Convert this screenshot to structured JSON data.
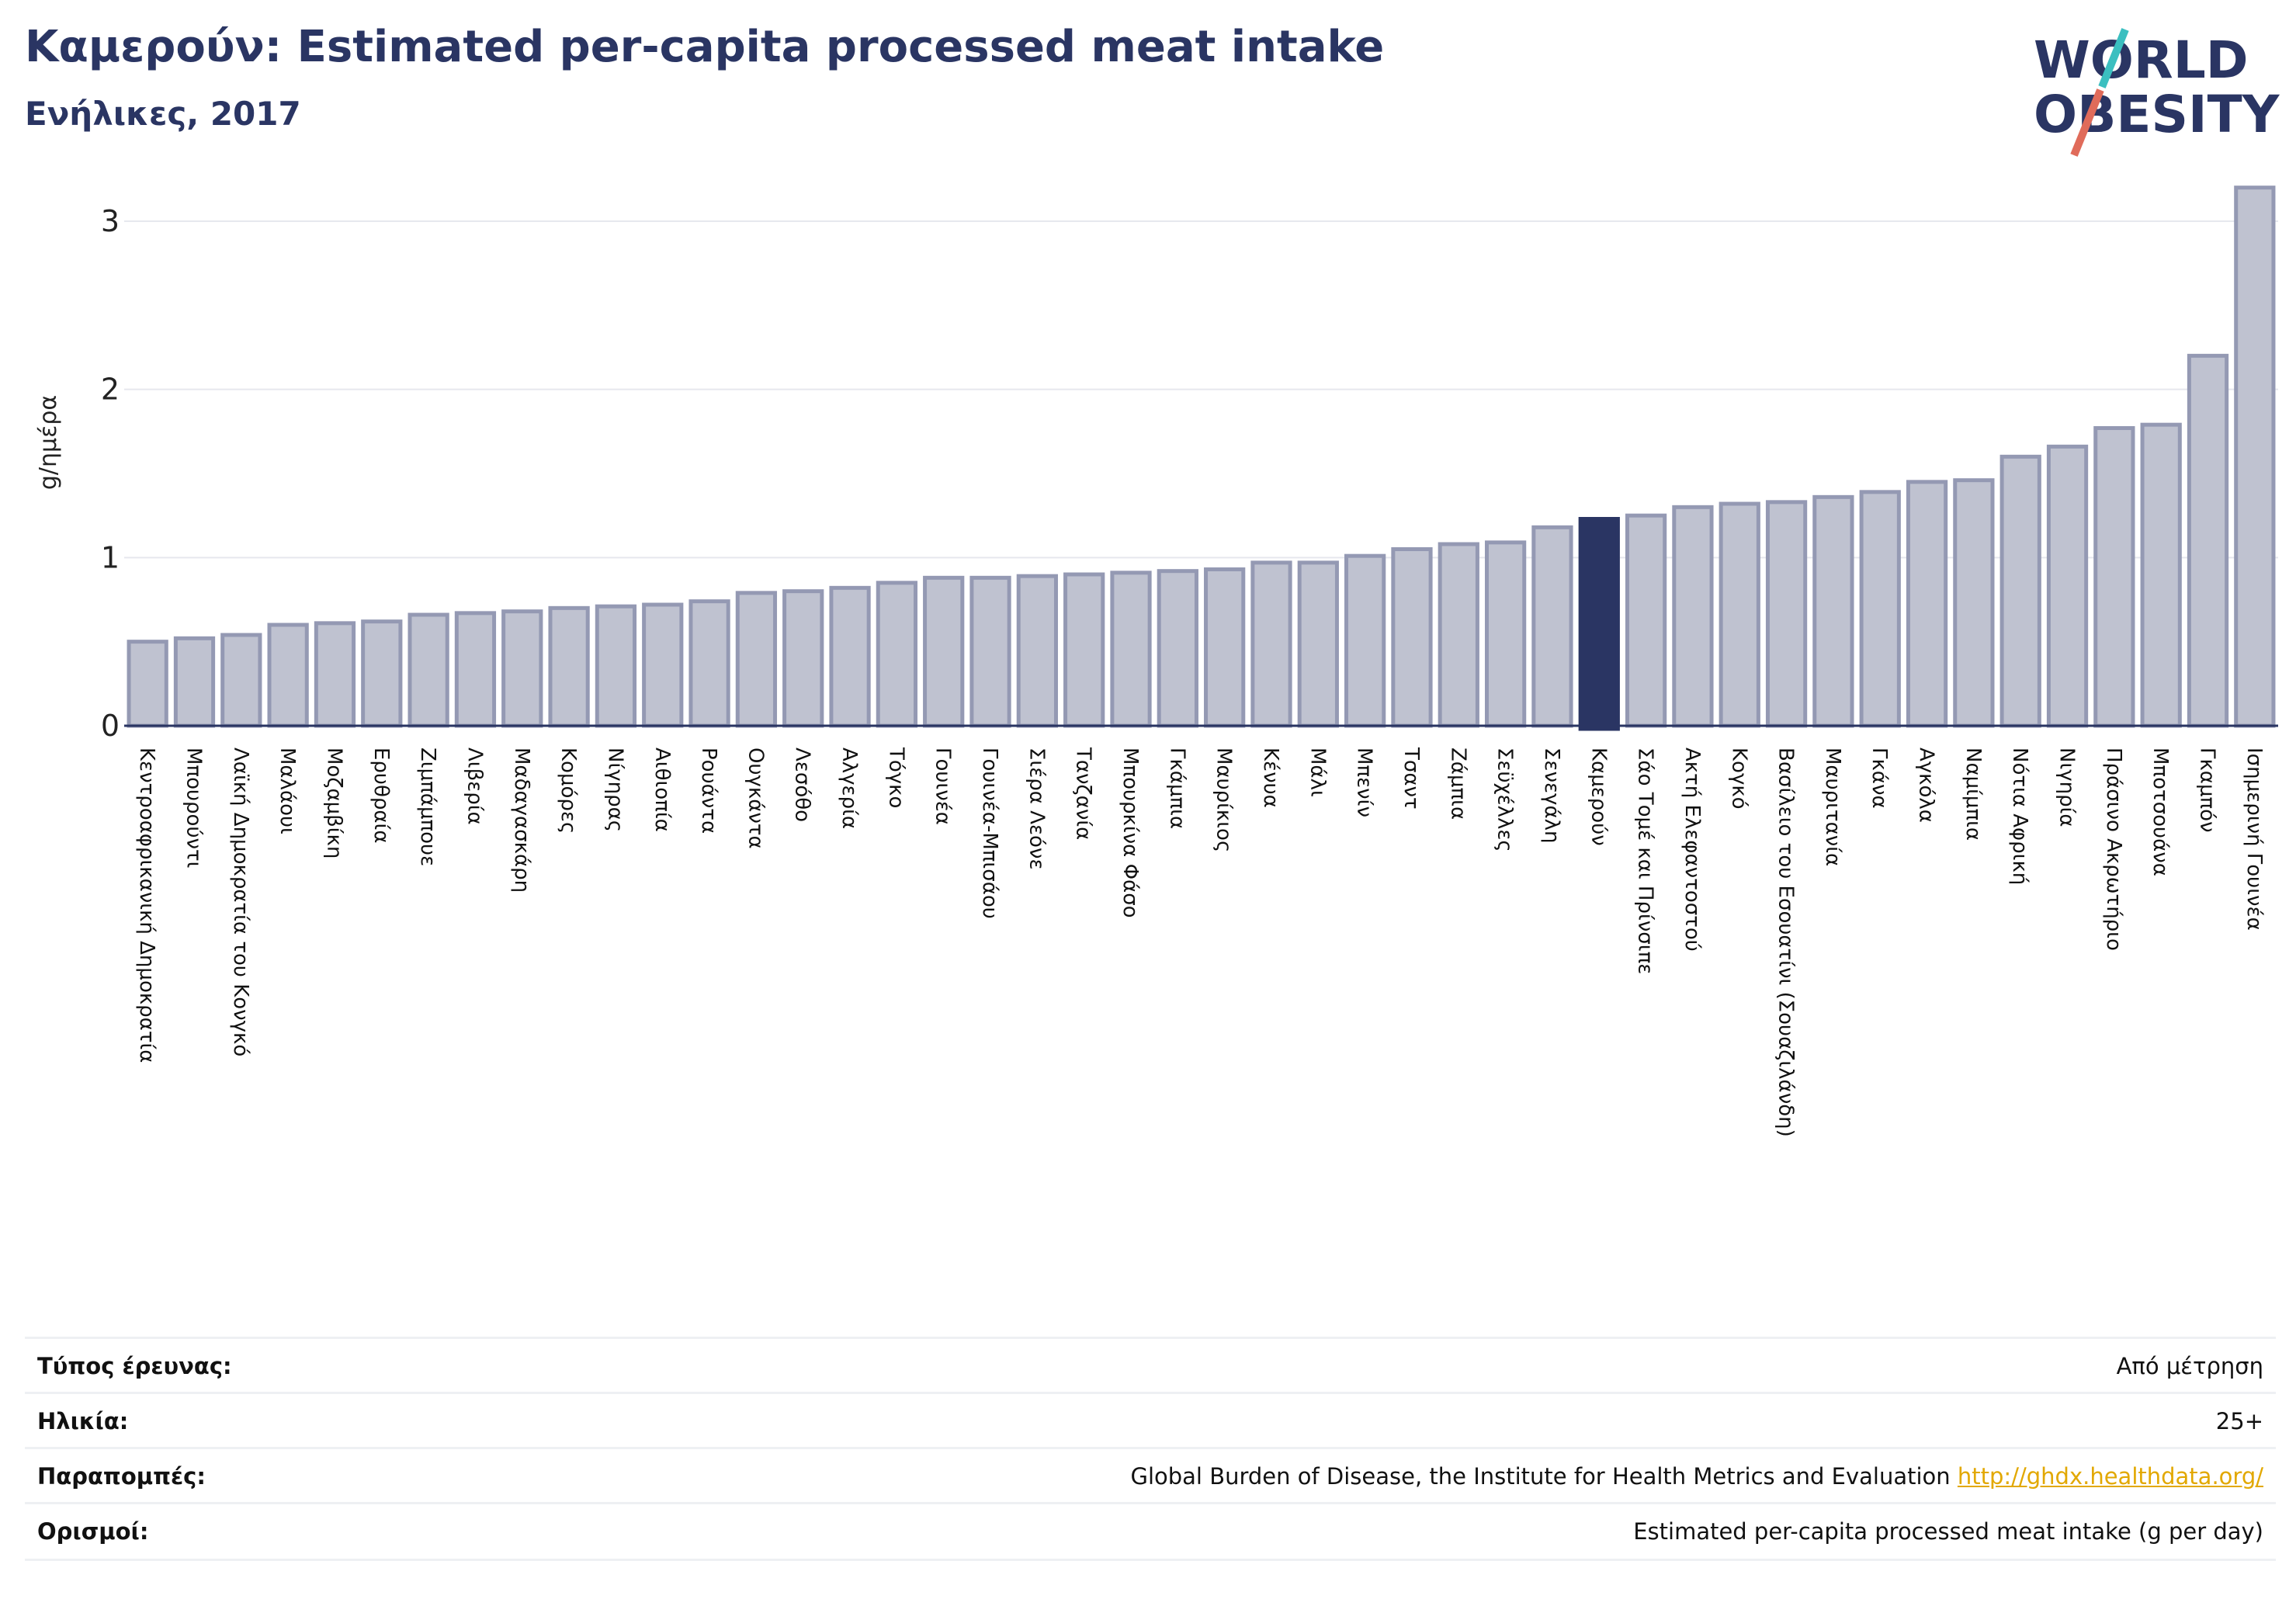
{
  "header": {
    "title": "Καμερούν: Estimated per-capita processed meat intake",
    "subtitle": "Ενήλικες, 2017"
  },
  "logo": {
    "line1": "WORLD",
    "line2": "OBESITY"
  },
  "colors": {
    "bar": "#bfc2d0",
    "bar_border": "#9499b3",
    "highlight": "#2a3563",
    "title": "#2a3563",
    "link": "#e2a800"
  },
  "chart_data": {
    "type": "bar",
    "ylabel": "g/ημέρα",
    "ylim": [
      0,
      3.3
    ],
    "yticks": [
      0,
      1,
      2,
      3
    ],
    "grid": true,
    "highlight": "Καμερούν",
    "categories": [
      "Κεντροαφρικανική Δημοκρατία",
      "Μπουρούντι",
      "Λαϊκή Δημοκρατία του Κονγκό",
      "Μαλάουι",
      "Μοζαμβίκη",
      "Ερυθραία",
      "Ζιμπάμπουε",
      "Λιβερία",
      "Μαδαγασκάρη",
      "Κομόρες",
      "Νίγηρας",
      "Αιθιοπία",
      "Ρουάντα",
      "Ουγκάντα",
      "Λεσόθο",
      "Αλγερία",
      "Τόγκο",
      "Γουινέα",
      "Γουινέα-Μπισάου",
      "Σιέρα Λεόνε",
      "Τανζανία",
      "Μπουρκίνα Φάσο",
      "Γκάμπια",
      "Μαυρίκιος",
      "Κένυα",
      "Μάλι",
      "Μπενίν",
      "Τσαντ",
      "Ζάμπια",
      "Σεϋχέλλες",
      "Σενεγάλη",
      "Καμερούν",
      "Σάο Τομέ και Πρίνσιπε",
      "Ακτή Ελεφαντοστού",
      "Κογκό",
      "Βασίλειο του Εσουατίνι (Σουαζιλάνδη)",
      "Μαυριτανία",
      "Γκάνα",
      "Αγκόλα",
      "Ναμίμπια",
      "Νότια Αφρική",
      "Νιγηρία",
      "Πράσινο Ακρωτήριο",
      "Μποτσουάνα",
      "Γκαμπόν",
      "Ισημερινή Γουινέα"
    ],
    "values": [
      0.5,
      0.52,
      0.54,
      0.6,
      0.61,
      0.62,
      0.66,
      0.67,
      0.68,
      0.7,
      0.71,
      0.72,
      0.74,
      0.79,
      0.8,
      0.82,
      0.85,
      0.88,
      0.88,
      0.89,
      0.9,
      0.91,
      0.92,
      0.93,
      0.97,
      0.97,
      1.01,
      1.05,
      1.08,
      1.09,
      1.18,
      1.23,
      1.25,
      1.3,
      1.32,
      1.33,
      1.36,
      1.39,
      1.45,
      1.46,
      1.6,
      1.66,
      1.77,
      1.79,
      2.2,
      3.2
    ]
  },
  "info": [
    {
      "key": "Τύπος έρευνας:",
      "value": "Από μέτρηση"
    },
    {
      "key": "Ηλικία:",
      "value": "25+"
    },
    {
      "key": "Παραπομπές:",
      "value": "Global Burden of Disease, the Institute for Health Metrics and Evaluation",
      "link": "http://ghdx.healthdata.org/"
    },
    {
      "key": "Ορισμοί:",
      "value": "Estimated per-capita processed meat intake (g per day)"
    }
  ]
}
